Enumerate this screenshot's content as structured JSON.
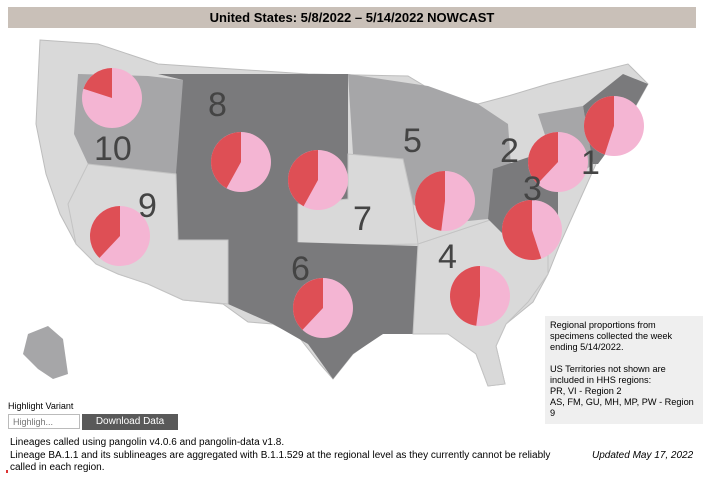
{
  "title": "United States: 5/8/2022 – 5/14/2022 NOWCAST",
  "colors": {
    "pie_dominant": "#f4b5d3",
    "pie_other": "#de4f55",
    "map_light": "#d9d9d9",
    "map_mid": "#a6a6a8",
    "map_dark": "#7a7a7c",
    "title_bg": "#c9c0b8",
    "button_bg": "#595959"
  },
  "regions": [
    {
      "number": "1",
      "share_pink": 0.55
    },
    {
      "number": "2",
      "share_pink": 0.62
    },
    {
      "number": "3",
      "share_pink": 0.45
    },
    {
      "number": "4",
      "share_pink": 0.52
    },
    {
      "number": "5",
      "share_pink": 0.52
    },
    {
      "number": "6",
      "share_pink": 0.62
    },
    {
      "number": "7",
      "share_pink": 0.58
    },
    {
      "number": "8",
      "share_pink": 0.58
    },
    {
      "number": "9",
      "share_pink": 0.62
    },
    {
      "number": "10",
      "share_pink": 0.8
    }
  ],
  "info_box": {
    "text1": "Regional proportions from\nspecimens collected the week\nending 5/14/2022.",
    "text2": "US Territories not shown are\nincluded in HHS regions:\nPR, VI - Region 2\nAS, FM, GU, MH, MP, PW - Region\n9"
  },
  "controls": {
    "highlight_label": "Highlight Variant",
    "highlight_placeholder": "Highligh...",
    "download_label": "Download Data"
  },
  "footer": {
    "line1": "Lineages called using pangolin v4.0.6 and pangolin-data v1.8.",
    "line2": "Lineage BA.1.1 and its sublineages are aggregated with B.1.1.529 at the regional level as they currently cannot be reliably called in each region."
  },
  "updated": "Updated May 17, 2022"
}
